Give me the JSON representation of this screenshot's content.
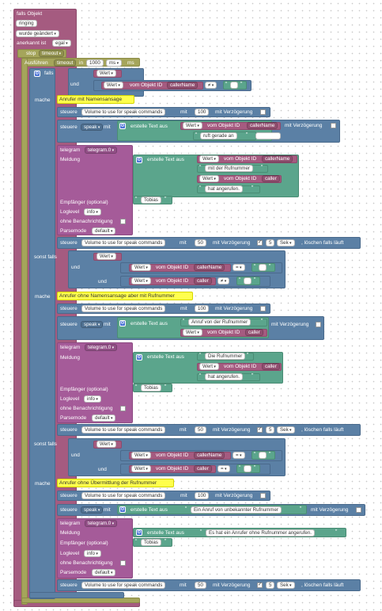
{
  "trigger": {
    "title": "falls Objekt",
    "object": "ringing",
    "changed": "wurde geändert",
    "ack_label": "anerkannt ist",
    "ack_value": "egal"
  },
  "stop_block": {
    "label": "stop",
    "value": "timeout"
  },
  "timeout_block": {
    "label": "Ausführen",
    "name": "timeout",
    "in_label": "in",
    "ms_value": "1000",
    "unit": "ms"
  },
  "logic": {
    "if": "falls",
    "else_if": "sonst falls",
    "do": "mache",
    "and": "und"
  },
  "vars": {
    "wert": "Wert",
    "vom_objekt_id": "vom Objekt ID",
    "caller_name": "callerName",
    "caller": "caller"
  },
  "ops": {
    "neq": "≠",
    "eq": "="
  },
  "control": {
    "steuere": "steuere",
    "volume": "Volume to use for speak commands",
    "mit": "mit",
    "mit_verz": "mit Verzögerung",
    "speak": "speak",
    "vol_100": "100",
    "vol_50": "50",
    "delay_5": "5",
    "unit_sek": "Sek",
    "clear_if_running": ", löschen falls läuft"
  },
  "text": {
    "create_text": "erstelle Text aus"
  },
  "telegram": {
    "label": "telegram",
    "instance": "telegram.0",
    "message": "Meldung",
    "recipient_opt": "Empfänger (optional)",
    "recipient": "Tobias",
    "loglevel": "Loglevel",
    "loglevel_value": "info",
    "no_notify": "ohne Benachrichtigung",
    "parsemode": "Parsemode",
    "parsemode_value": "default"
  },
  "branch1": {
    "comment": "Anrufer mit Namensansage",
    "speak_suffix": " ruft gerade an",
    "msg_1": "mit der Rufnummer",
    "msg_2": "hat angerufen."
  },
  "branch2": {
    "comment": "Anrufer ohne Namensansage aber mit Rufnummer",
    "speak_prefix": "Anruf von der Rufnummer",
    "msg_1": "Die Rufnummer",
    "msg_2": "hat angerufen."
  },
  "branch3": {
    "comment": "Anrufer ohne Übermittlung der Rufnummer",
    "speak_text": "Ein Anruf von unbekannter Rufnummer",
    "msg": "Es hat ein Anrufer ohne Rufnummer angerufen."
  },
  "colors": {
    "trigger": "#a55b80",
    "logic": "#5b80a5",
    "timer": "#a5a55b",
    "telegram": "#a55b99",
    "text": "#5ba58c",
    "comment": "#ffff4d"
  }
}
